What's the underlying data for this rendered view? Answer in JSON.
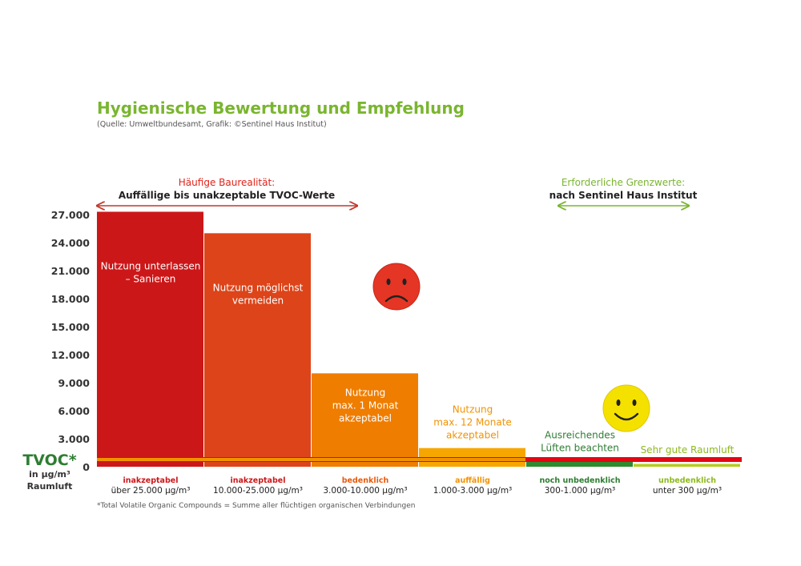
{
  "title": "Hygienische Bewertung und Empfehlung",
  "subtitle": "(Quelle: Umweltbundesamt, Grafik: ©Sentinel Haus Institut)",
  "annotations": {
    "left_heading": "Häufige Baurealität:",
    "left_sub": "Auffällige bis unakzeptable TVOC-Werte",
    "right_heading": "Erforderliche Grenzwerte:",
    "right_sub": "nach Sentinel Haus Institut"
  },
  "y_axis": {
    "title": "TVOC*",
    "unit_line1": "in µg/m³",
    "unit_line2": "Raumluft"
  },
  "footnote": "*Total Volatile Organic Compounds = Summe aller flüchtigen organischen Verbindungen",
  "colors": {
    "title": "#7ab530",
    "red_arrow": "#c0392b",
    "green_arrow": "#7ab530",
    "threshold_line": "#e30613",
    "threshold_line_inner": "#f39200",
    "axis_text": "#333333",
    "frown_face": "#e53525",
    "smile_face": "#f5e100"
  },
  "chart_data": {
    "type": "bar",
    "title": "Hygienische Bewertung und Empfehlung",
    "ylim": [
      0,
      27000
    ],
    "yticks": [
      "27.000",
      "24.000",
      "21.000",
      "18.000",
      "15.000",
      "12.000",
      "9.000",
      "6.000",
      "3.000",
      "0"
    ],
    "ytick_values": [
      27000,
      24000,
      21000,
      18000,
      15000,
      12000,
      9000,
      6000,
      3000,
      0
    ],
    "grid": false,
    "bars": [
      {
        "category": "inakzeptabel",
        "range": "über 25.000 µg/m³",
        "value": 27300,
        "label": [
          "Nutzung unterlassen",
          "– Sanieren"
        ],
        "color": "#cc1719",
        "label_color": "#ffffff",
        "category_color": "#cc1719",
        "label_inside": true
      },
      {
        "category": "inakzeptabel",
        "range": "10.000-25.000 µg/m³",
        "value": 25000,
        "label": [
          "Nutzung möglichst",
          "vermeiden"
        ],
        "color": "#dd4419",
        "label_color": "#ffffff",
        "category_color": "#cc1719",
        "label_inside": true
      },
      {
        "category": "bedenklich",
        "range": "3.000-10.000 µg/m³",
        "value": 10000,
        "label": [
          "Nutzung",
          "max. 1 Monat",
          "akzeptabel"
        ],
        "color": "#ef7d00",
        "label_color": "#ffffff",
        "category_color": "#e85a0c",
        "label_inside": true
      },
      {
        "category": "auffällig",
        "range": "1.000-3.000 µg/m³",
        "value": 2000,
        "label": [
          "Nutzung",
          "max. 12 Monate",
          "akzeptabel"
        ],
        "color": "#f7a600",
        "label_color": "#f39200",
        "category_color": "#f39200",
        "label_inside": false
      },
      {
        "category": "noch unbedenklich",
        "range": "300-1.000 µg/m³",
        "value": 650,
        "label": [
          "Ausreichendes",
          "Lüften beachten"
        ],
        "color": "#2e8b2e",
        "label_color": "#2e7d32",
        "category_color": "#2e7d32",
        "label_inside": false
      },
      {
        "category": "unbedenklich",
        "range": "unter 300 µg/m³",
        "value": 300,
        "label": [
          "Sehr gute Raumluft"
        ],
        "color": "#b5cd1e",
        "label_color": "#8dba1e",
        "category_color": "#8dba1e",
        "label_inside": false
      }
    ],
    "threshold_value": 700
  }
}
